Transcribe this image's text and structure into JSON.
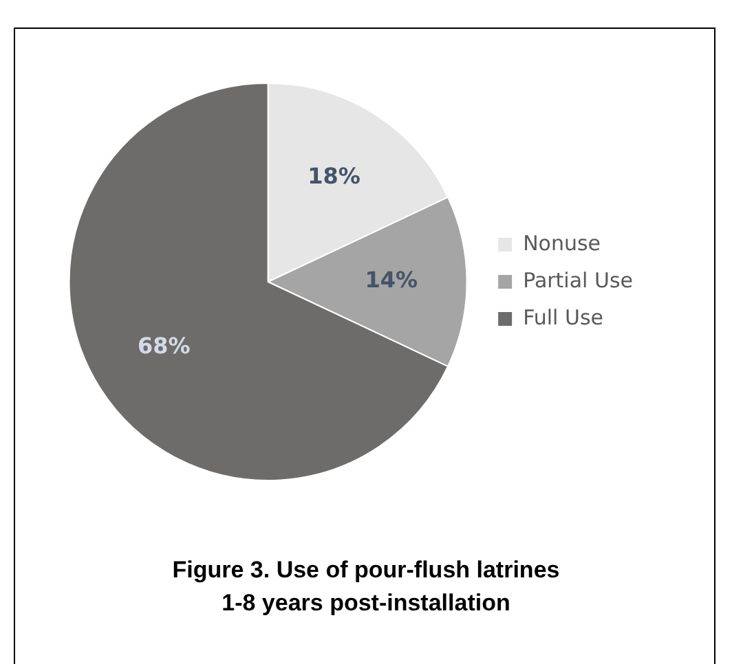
{
  "chart_data": {
    "type": "pie",
    "title": "Figure 3. Use of pour-flush latrines\n1-8 years post-installation",
    "categories": [
      "Nonuse",
      "Partial Use",
      "Full Use"
    ],
    "values": [
      18,
      14,
      68
    ],
    "colors": [
      "#e6e6e6",
      "#a5a5a5",
      "#6e6b6b"
    ],
    "value_labels": [
      "18%",
      "14%",
      "68%"
    ],
    "legend": "right"
  }
}
